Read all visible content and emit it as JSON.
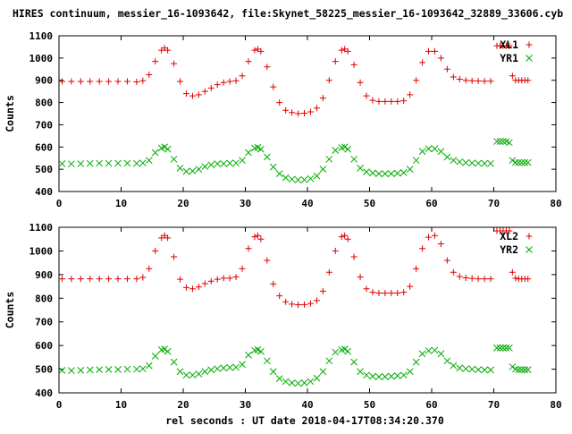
{
  "figure": {
    "title": "HIRES continuum, messier_16-1093642, file:Skynet_58225_messier_16-1093642_32889_33606.cyb",
    "xlabel": "rel seconds : UT date 2018-04-17T08:34:20.370"
  },
  "colors": {
    "x_series": "#dd0000",
    "y_series": "#00aa00",
    "axis": "#000000"
  },
  "chart_data": [
    {
      "type": "scatter",
      "ylabel": "Counts",
      "xlim": [
        0,
        80
      ],
      "ylim": [
        400,
        1100
      ],
      "xticks": [
        0,
        10,
        20,
        30,
        40,
        50,
        60,
        70,
        80
      ],
      "yticks": [
        400,
        500,
        600,
        700,
        800,
        900,
        1000,
        1100
      ],
      "legend_placement": "top-right",
      "series": [
        {
          "name": "XL1",
          "marker": "plus",
          "x": [
            0.5,
            2.0,
            3.5,
            5.0,
            6.5,
            8.0,
            9.5,
            11.0,
            12.5,
            13.5,
            14.5,
            15.5,
            16.5,
            17.0,
            17.5,
            18.5,
            19.5,
            20.5,
            21.5,
            22.5,
            23.5,
            24.5,
            25.5,
            26.5,
            27.5,
            28.5,
            29.5,
            30.5,
            31.5,
            32.0,
            32.5,
            33.5,
            34.5,
            35.5,
            36.5,
            37.5,
            38.5,
            39.5,
            40.5,
            41.5,
            42.5,
            43.5,
            44.5,
            45.5,
            46.0,
            46.5,
            47.5,
            48.5,
            49.5,
            50.5,
            51.5,
            52.5,
            53.5,
            54.5,
            55.5,
            56.5,
            57.5,
            58.5,
            59.5,
            60.5,
            61.5,
            62.5,
            63.5,
            64.5,
            65.5,
            66.5,
            67.5,
            68.5,
            69.5,
            70.5,
            71.0,
            71.5,
            72.0,
            72.5,
            73.0,
            73.5,
            74.0,
            74.5,
            75.0,
            75.5
          ],
          "y": [
            895,
            895,
            895,
            895,
            895,
            895,
            895,
            895,
            893,
            898,
            925,
            985,
            1035,
            1045,
            1035,
            975,
            895,
            840,
            830,
            835,
            850,
            865,
            880,
            890,
            895,
            898,
            920,
            985,
            1035,
            1040,
            1030,
            960,
            870,
            800,
            765,
            755,
            750,
            752,
            758,
            775,
            820,
            900,
            985,
            1035,
            1040,
            1030,
            970,
            890,
            830,
            810,
            805,
            805,
            805,
            805,
            808,
            835,
            900,
            980,
            1030,
            1030,
            1000,
            950,
            915,
            905,
            900,
            898,
            897,
            896,
            896,
            1055,
            1055,
            1055,
            1055,
            1055,
            920,
            900,
            900,
            900,
            900,
            900
          ]
        },
        {
          "name": "YR1",
          "marker": "cross",
          "x": [
            0.5,
            2.0,
            3.5,
            5.0,
            6.5,
            8.0,
            9.5,
            11.0,
            12.5,
            13.5,
            14.5,
            15.5,
            16.5,
            17.0,
            17.5,
            18.5,
            19.5,
            20.5,
            21.5,
            22.5,
            23.5,
            24.5,
            25.5,
            26.5,
            27.5,
            28.5,
            29.5,
            30.5,
            31.5,
            32.0,
            32.5,
            33.5,
            34.5,
            35.5,
            36.5,
            37.5,
            38.5,
            39.5,
            40.5,
            41.5,
            42.5,
            43.5,
            44.5,
            45.5,
            46.0,
            46.5,
            47.5,
            48.5,
            49.5,
            50.5,
            51.5,
            52.5,
            53.5,
            54.5,
            55.5,
            56.5,
            57.5,
            58.5,
            59.5,
            60.5,
            61.5,
            62.5,
            63.5,
            64.5,
            65.5,
            66.5,
            67.5,
            68.5,
            69.5,
            70.5,
            71.0,
            71.5,
            72.0,
            72.5,
            73.0,
            73.5,
            74.0,
            74.5,
            75.0,
            75.5
          ],
          "y": [
            525,
            524,
            525,
            526,
            527,
            527,
            527,
            527,
            526,
            528,
            540,
            575,
            595,
            600,
            590,
            545,
            505,
            490,
            492,
            500,
            512,
            520,
            525,
            525,
            527,
            528,
            540,
            575,
            595,
            598,
            590,
            555,
            510,
            480,
            462,
            455,
            452,
            453,
            458,
            470,
            500,
            545,
            585,
            597,
            600,
            590,
            545,
            505,
            488,
            483,
            480,
            480,
            480,
            482,
            485,
            500,
            540,
            580,
            592,
            592,
            580,
            555,
            540,
            533,
            530,
            528,
            527,
            526,
            526,
            625,
            625,
            625,
            625,
            620,
            540,
            530,
            530,
            530,
            530,
            530
          ]
        }
      ]
    },
    {
      "type": "scatter",
      "ylabel": "Counts",
      "xlim": [
        0,
        80
      ],
      "ylim": [
        400,
        1100
      ],
      "xticks": [
        0,
        10,
        20,
        30,
        40,
        50,
        60,
        70,
        80
      ],
      "yticks": [
        400,
        500,
        600,
        700,
        800,
        900,
        1000,
        1100
      ],
      "legend_placement": "top-right",
      "series": [
        {
          "name": "XL2",
          "marker": "plus",
          "x": [
            0.5,
            2.0,
            3.5,
            5.0,
            6.5,
            8.0,
            9.5,
            11.0,
            12.5,
            13.5,
            14.5,
            15.5,
            16.5,
            17.0,
            17.5,
            18.5,
            19.5,
            20.5,
            21.5,
            22.5,
            23.5,
            24.5,
            25.5,
            26.5,
            27.5,
            28.5,
            29.5,
            30.5,
            31.5,
            32.0,
            32.5,
            33.5,
            34.5,
            35.5,
            36.5,
            37.5,
            38.5,
            39.5,
            40.5,
            41.5,
            42.5,
            43.5,
            44.5,
            45.5,
            46.0,
            46.5,
            47.5,
            48.5,
            49.5,
            50.5,
            51.5,
            52.5,
            53.5,
            54.5,
            55.5,
            56.5,
            57.5,
            58.5,
            59.5,
            60.5,
            61.5,
            62.5,
            63.5,
            64.5,
            65.5,
            66.5,
            67.5,
            68.5,
            69.5,
            70.5,
            71.0,
            71.5,
            72.0,
            72.5,
            73.0,
            73.5,
            74.0,
            74.5,
            75.0,
            75.5
          ],
          "y": [
            882,
            882,
            882,
            882,
            882,
            882,
            882,
            882,
            882,
            888,
            925,
            1000,
            1055,
            1065,
            1055,
            975,
            880,
            845,
            840,
            848,
            862,
            872,
            880,
            885,
            885,
            890,
            925,
            1010,
            1060,
            1065,
            1050,
            960,
            860,
            810,
            785,
            775,
            772,
            773,
            778,
            790,
            830,
            910,
            1000,
            1060,
            1065,
            1050,
            975,
            890,
            840,
            825,
            822,
            822,
            822,
            822,
            825,
            850,
            925,
            1010,
            1058,
            1065,
            1030,
            960,
            910,
            892,
            886,
            884,
            882,
            882,
            882,
            1085,
            1085,
            1085,
            1085,
            1085,
            910,
            885,
            882,
            882,
            882,
            882
          ]
        },
        {
          "name": "YR2",
          "marker": "cross",
          "x": [
            0.5,
            2.0,
            3.5,
            5.0,
            6.5,
            8.0,
            9.5,
            11.0,
            12.5,
            13.5,
            14.5,
            15.5,
            16.5,
            17.0,
            17.5,
            18.5,
            19.5,
            20.5,
            21.5,
            22.5,
            23.5,
            24.5,
            25.5,
            26.5,
            27.5,
            28.5,
            29.5,
            30.5,
            31.5,
            32.0,
            32.5,
            33.5,
            34.5,
            35.5,
            36.5,
            37.5,
            38.5,
            39.5,
            40.5,
            41.5,
            42.5,
            43.5,
            44.5,
            45.5,
            46.0,
            46.5,
            47.5,
            48.5,
            49.5,
            50.5,
            51.5,
            52.5,
            53.5,
            54.5,
            55.5,
            56.5,
            57.5,
            58.5,
            59.5,
            60.5,
            61.5,
            62.5,
            63.5,
            64.5,
            65.5,
            66.5,
            67.5,
            68.5,
            69.5,
            70.5,
            71.0,
            71.5,
            72.0,
            72.5,
            73.0,
            73.5,
            74.0,
            74.5,
            75.0,
            75.5
          ],
          "y": [
            495,
            494,
            495,
            497,
            498,
            499,
            499,
            500,
            500,
            502,
            515,
            555,
            582,
            585,
            575,
            530,
            490,
            475,
            475,
            480,
            490,
            497,
            502,
            505,
            507,
            508,
            520,
            560,
            580,
            582,
            575,
            535,
            490,
            460,
            448,
            442,
            440,
            442,
            448,
            462,
            490,
            535,
            572,
            582,
            585,
            575,
            530,
            490,
            475,
            470,
            468,
            468,
            470,
            472,
            475,
            490,
            530,
            565,
            578,
            580,
            565,
            535,
            515,
            505,
            502,
            500,
            498,
            497,
            497,
            590,
            590,
            590,
            590,
            590,
            510,
            500,
            498,
            498,
            498,
            498
          ]
        }
      ]
    }
  ]
}
